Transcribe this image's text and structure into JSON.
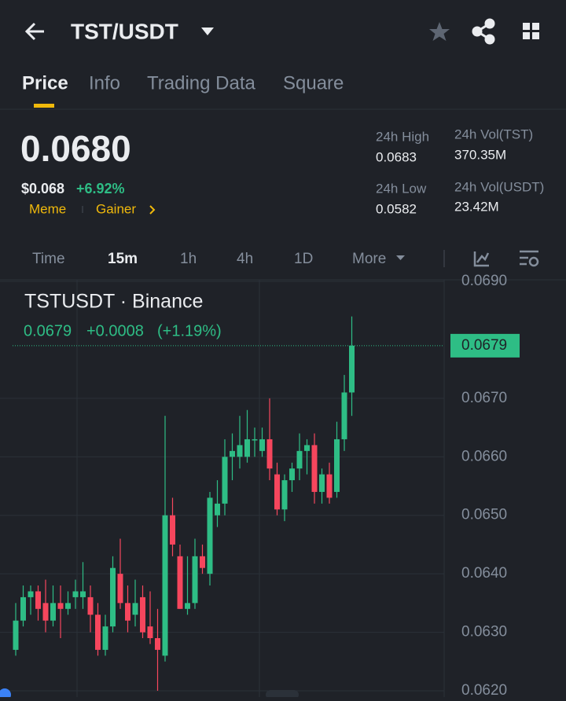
{
  "header": {
    "pair": "TST/USDT"
  },
  "tabs": [
    "Price",
    "Info",
    "Trading Data",
    "Square"
  ],
  "price": {
    "last": "0.0680",
    "fiat": "$0.068",
    "change": "+6.92%",
    "tags": [
      "Meme",
      "Gainer"
    ]
  },
  "stats": [
    {
      "label": "24h High",
      "value": "0.0683"
    },
    {
      "label": "24h Vol(TST)",
      "value": "370.35M"
    },
    {
      "label": "24h Low",
      "value": "0.0582"
    },
    {
      "label": "24h Vol(USDT)",
      "value": "23.42M"
    }
  ],
  "intervals": [
    "Time",
    "15m",
    "1h",
    "4h",
    "1D",
    "More"
  ],
  "chart_data": {
    "type": "candlestick",
    "title": "TSTUSDT · Binance",
    "legend": {
      "close": "0.0679",
      "change": "+0.0008",
      "change_pct": "(+1.19%)"
    },
    "up_color": "#2ebd85",
    "down_color": "#f6465d",
    "open": [
      0.0627,
      0.0632,
      0.0636,
      0.0637,
      0.0635,
      0.0632,
      0.0635,
      0.0634,
      0.0636,
      0.0636,
      0.0636,
      0.0633,
      0.0627,
      0.0631,
      0.064,
      0.0635,
      0.0633,
      0.0636,
      0.0631,
      0.0629,
      0.0626,
      0.065,
      0.0643,
      0.0634,
      0.0635,
      0.0643,
      0.064,
      0.065,
      0.0652,
      0.066,
      0.066,
      0.066,
      0.0663,
      0.0661,
      0.0663,
      0.0657,
      0.0651,
      0.0656,
      0.0658,
      0.0661,
      0.0662,
      0.0654,
      0.0657,
      0.0654,
      0.0663,
      0.0671
    ],
    "high": [
      0.0635,
      0.0638,
      0.0638,
      0.0638,
      0.0639,
      0.0638,
      0.0638,
      0.0637,
      0.0639,
      0.0642,
      0.0638,
      0.0635,
      0.0633,
      0.0643,
      0.0646,
      0.0638,
      0.0639,
      0.0638,
      0.0637,
      0.0634,
      0.0667,
      0.0653,
      0.0645,
      0.0643,
      0.0646,
      0.0645,
      0.0654,
      0.0656,
      0.0663,
      0.0664,
      0.0667,
      0.0668,
      0.0665,
      0.0665,
      0.067,
      0.0659,
      0.0657,
      0.0659,
      0.0664,
      0.0663,
      0.0664,
      0.0658,
      0.0659,
      0.0666,
      0.0674,
      0.0684
    ],
    "low": [
      0.0626,
      0.0631,
      0.0633,
      0.0632,
      0.063,
      0.0631,
      0.0629,
      0.0633,
      0.0634,
      0.0634,
      0.063,
      0.0626,
      0.0626,
      0.063,
      0.0634,
      0.063,
      0.0631,
      0.0629,
      0.0628,
      0.062,
      0.0625,
      0.0643,
      0.0634,
      0.0633,
      0.0634,
      0.064,
      0.0638,
      0.0648,
      0.065,
      0.0656,
      0.0658,
      0.0659,
      0.066,
      0.066,
      0.0656,
      0.065,
      0.0649,
      0.0654,
      0.0656,
      0.0657,
      0.0652,
      0.0652,
      0.0652,
      0.0653,
      0.0661,
      0.0667
    ],
    "close": [
      0.0632,
      0.0636,
      0.0637,
      0.0634,
      0.0632,
      0.0635,
      0.0634,
      0.0635,
      0.0637,
      0.0637,
      0.0633,
      0.0627,
      0.0631,
      0.0641,
      0.0635,
      0.0632,
      0.0635,
      0.063,
      0.0629,
      0.0627,
      0.065,
      0.0645,
      0.0634,
      0.0635,
      0.0643,
      0.0641,
      0.0653,
      0.0652,
      0.066,
      0.0661,
      0.0662,
      0.0663,
      0.0663,
      0.0663,
      0.0658,
      0.0651,
      0.0656,
      0.0658,
      0.0661,
      0.0662,
      0.0654,
      0.0657,
      0.0653,
      0.0663,
      0.0671,
      0.0679
    ],
    "last_price": {
      "value": 0.0679,
      "label": "0.0679"
    },
    "ylim": [
      0.062,
      0.069
    ],
    "yticks": [
      {
        "value": 0.062,
        "label": "0.0620"
      },
      {
        "value": 0.063,
        "label": "0.0630"
      },
      {
        "value": 0.064,
        "label": "0.0640"
      },
      {
        "value": 0.065,
        "label": "0.0650"
      },
      {
        "value": 0.066,
        "label": "0.0660"
      },
      {
        "value": 0.067,
        "label": "0.0670"
      },
      {
        "value": 0.069,
        "label": "0.0690"
      }
    ],
    "grid": true
  }
}
